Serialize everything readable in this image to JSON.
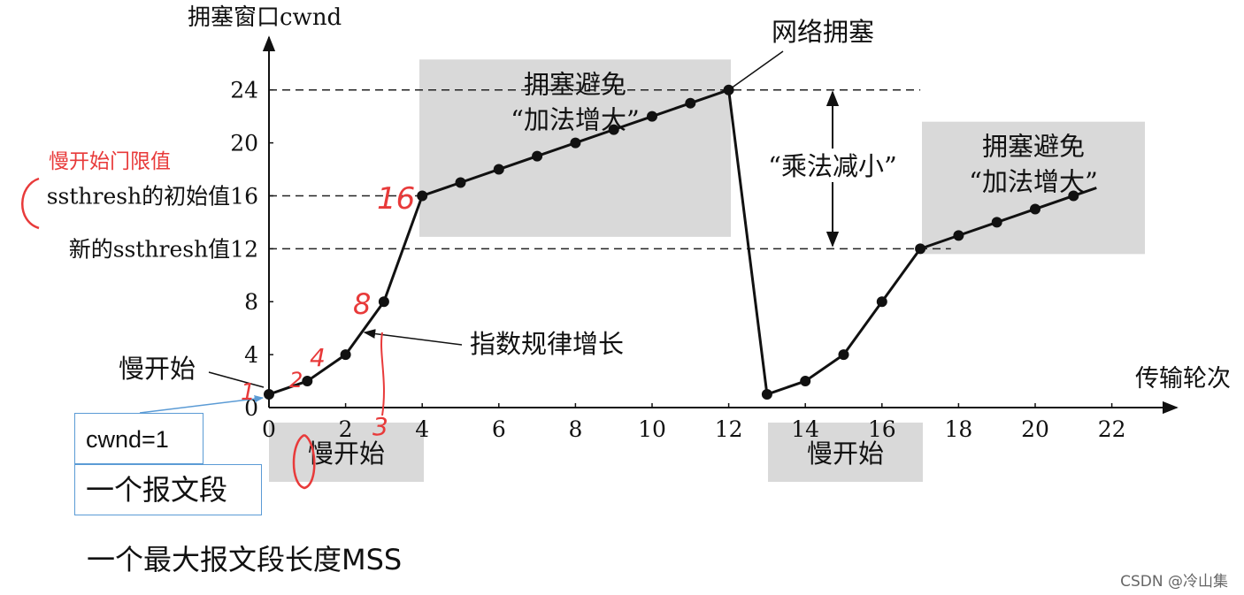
{
  "chart_data": {
    "type": "line",
    "ylabel": "拥塞窗口cwnd",
    "xlabel": "传输轮次",
    "xlim": [
      0,
      22
    ],
    "ylim": [
      0,
      24
    ],
    "x_ticks": [
      "0",
      "2",
      "4",
      "6",
      "8",
      "10",
      "12",
      "14",
      "16",
      "18",
      "20",
      "22"
    ],
    "x_tick_values": [
      0,
      2,
      4,
      6,
      8,
      10,
      12,
      14,
      16,
      18,
      20,
      22
    ],
    "y_ticks": [
      "0",
      "4",
      "8",
      "12",
      "16",
      "20",
      "24"
    ],
    "y_tick_values": [
      0,
      4,
      8,
      12,
      16,
      20,
      24
    ],
    "series": [
      {
        "x": [
          0,
          1,
          2,
          3,
          4,
          5,
          6,
          7,
          8,
          9,
          10,
          11,
          12,
          13,
          14,
          15,
          16,
          17,
          18,
          19,
          20,
          21
        ],
        "y": [
          1,
          2,
          4,
          8,
          16,
          17,
          18,
          19,
          20,
          21,
          22,
          23,
          24,
          1,
          2,
          4,
          8,
          12,
          13,
          14,
          15,
          16
        ],
        "line_end": [
          21.6,
          16.6
        ]
      }
    ],
    "reference_lines": [
      {
        "y": 24,
        "x_range": [
          0,
          17
        ],
        "style": "dashed"
      },
      {
        "y": 16,
        "x_range": [
          0,
          4
        ],
        "style": "dashed"
      },
      {
        "y": 12,
        "x_range": [
          0,
          17.8
        ],
        "style": "dashed"
      }
    ],
    "y_annotations": [
      {
        "y": 16,
        "text": "ssthresh的初始值16"
      },
      {
        "y": 12,
        "text": "新的ssthresh值12"
      }
    ],
    "shaded_regions": [
      {
        "x_range": [
          4,
          12
        ],
        "label_lines": [
          "拥塞避免",
          "“加法增大”"
        ]
      },
      {
        "x_range": [
          17,
          22
        ],
        "label_lines": [
          "拥塞避免",
          "“加法增大”"
        ]
      },
      {
        "x_range": [
          0,
          4
        ],
        "label_lines": [
          "慢开始"
        ],
        "position": "below-axis"
      },
      {
        "x_range": [
          13,
          17
        ],
        "label_lines": [
          "慢开始"
        ],
        "position": "below-axis"
      }
    ],
    "annotations": {
      "congestion": "网络拥塞",
      "multiplicative_decrease": "“乘法减小”",
      "exponential_growth": "指数规律增长",
      "slow_start_left": "慢开始"
    },
    "handwritten": {
      "red_title": "慢开始门限值",
      "marks": [
        "1",
        "2",
        "4",
        "8",
        "16",
        "3"
      ]
    },
    "colors": {
      "line": "#111111",
      "shade": "#d9d9d9",
      "red": "#e83a3a",
      "callout_border": "#5b9bd5",
      "pointer": "#5b9bd5"
    }
  },
  "notes": {
    "cwnd_box": "cwnd=1",
    "segment_box": "一个报文段",
    "mss_line": "一个最大报文段长度MSS"
  },
  "watermark": "CSDN @冷山集"
}
